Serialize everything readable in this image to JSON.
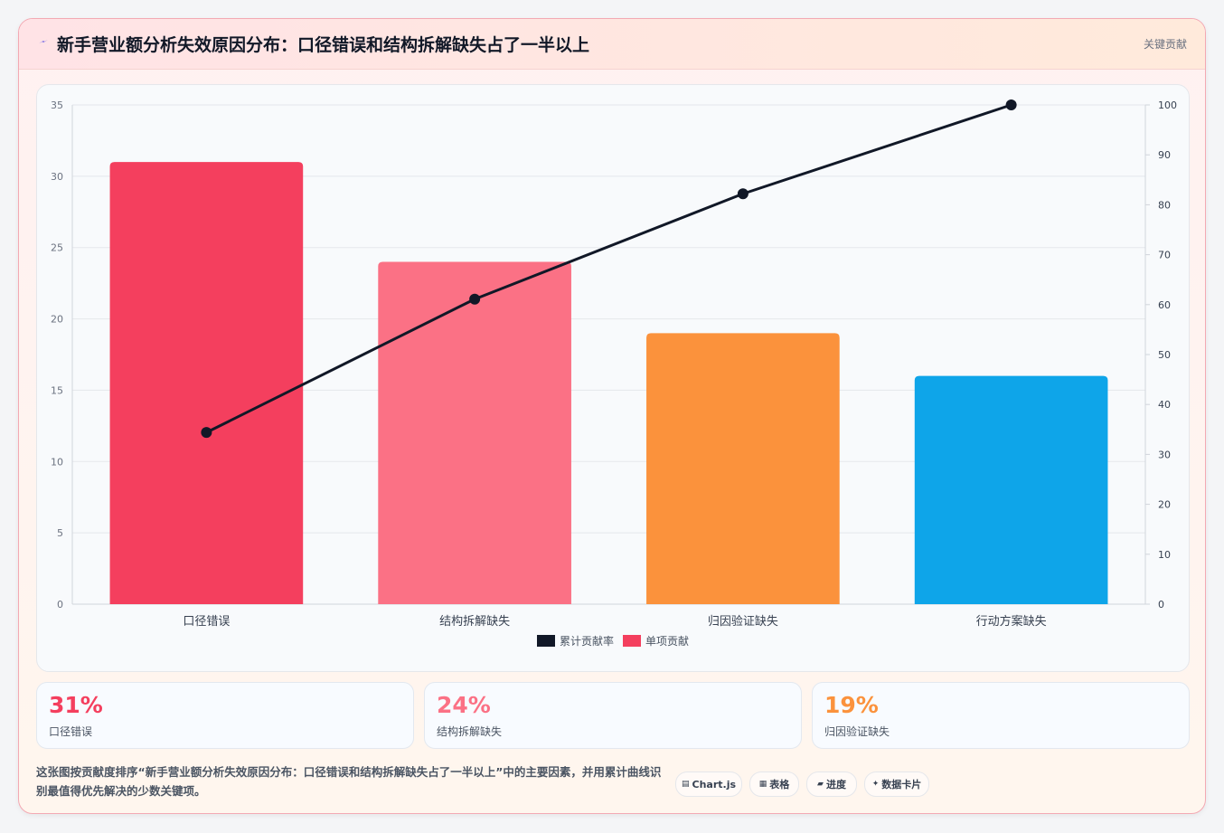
{
  "header": {
    "title": "新手营业额分析失效原因分布：口径错误和结构拆解缺失占了一半以上",
    "tag": "关键贡献",
    "icon": "lightning-icon",
    "icon_color": "#4f46e5"
  },
  "chart_data": {
    "type": "bar",
    "categories": [
      "口径错误",
      "结构拆解缺失",
      "归因验证缺失",
      "行动方案缺失"
    ],
    "series": [
      {
        "name": "单项贡献",
        "type": "bar",
        "axis": "left",
        "values": [
          31,
          24,
          19,
          16
        ],
        "colors": [
          "#f43f5e",
          "#fb7185",
          "#fb923c",
          "#0ea5e9"
        ]
      },
      {
        "name": "累计贡献率",
        "type": "line",
        "axis": "right",
        "values": [
          34.4,
          61.1,
          82.2,
          100
        ],
        "color": "#111827"
      }
    ],
    "y_left": {
      "min": 0,
      "max": 35,
      "ticks": [
        "0",
        "5",
        "10",
        "15",
        "20",
        "25",
        "30",
        "35"
      ]
    },
    "y_right": {
      "min": 0,
      "max": 100,
      "ticks": [
        "0",
        "10",
        "20",
        "30",
        "40",
        "50",
        "60",
        "70",
        "80",
        "90",
        "100"
      ]
    },
    "legend": [
      {
        "label": "累计贡献率",
        "color": "#111827"
      },
      {
        "label": "单项贡献",
        "color": "#f43f5e"
      }
    ],
    "legend_position": "bottom",
    "grid": true
  },
  "stats": [
    {
      "value": "31%",
      "label": "口径错误",
      "color": "#f43f5e"
    },
    {
      "value": "24%",
      "label": "结构拆解缺失",
      "color": "#fb7185"
    },
    {
      "value": "19%",
      "label": "归因验证缺失",
      "color": "#fb923c"
    }
  ],
  "description": "这张图按贡献度排序“新手营业额分析失效原因分布：口径错误和结构拆解缺失占了一半以上”中的主要因素，并用累计曲线识别最值得优先解决的少数关键项。",
  "chips": [
    {
      "icon": "chart-icon",
      "glyph": "▤",
      "label": "Chart.js"
    },
    {
      "icon": "table-icon",
      "glyph": "▦",
      "label": "表格"
    },
    {
      "icon": "progress-icon",
      "glyph": "▰",
      "label": "进度"
    },
    {
      "icon": "sparkle-icon",
      "glyph": "✦",
      "label": "数据卡片"
    }
  ]
}
